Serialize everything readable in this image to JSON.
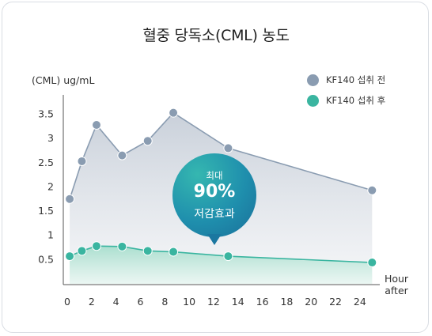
{
  "chart_data": {
    "type": "line",
    "title": "혈중 당독소(CML) 농도",
    "ylabel": "(CML) ug/mL",
    "xlabel": "Hour after",
    "xlabel_lines": [
      "Hour",
      "after"
    ],
    "xlim": [
      0,
      25.5
    ],
    "ylim": [
      0,
      3.9
    ],
    "xticks": [
      0,
      2,
      4,
      6,
      8,
      10,
      12,
      14,
      16,
      18,
      20,
      22,
      24
    ],
    "yticks": [
      0.5,
      1,
      1.5,
      2,
      2.5,
      3,
      3.5
    ],
    "ytick_labels": [
      "0.5",
      "1",
      "1.5",
      "2",
      "2.5",
      "3",
      "3.5"
    ],
    "legend_position": "top-right",
    "series": [
      {
        "name": "KF140 섭취 전",
        "color": "#8a9cb1",
        "x": [
          0.2,
          1.2,
          2.4,
          4.5,
          6.6,
          8.7,
          13.2,
          25
        ],
        "values": [
          1.75,
          2.53,
          3.28,
          2.65,
          2.95,
          3.53,
          2.8,
          1.93
        ]
      },
      {
        "name": "KF140 섭취 후",
        "color": "#3ab5a0",
        "x": [
          0.2,
          1.2,
          2.4,
          4.5,
          6.6,
          8.7,
          13.2,
          25
        ],
        "values": [
          0.57,
          0.68,
          0.78,
          0.77,
          0.68,
          0.66,
          0.57,
          0.44
        ]
      }
    ],
    "annotation": {
      "line1": "최대",
      "line2": "90%",
      "line3": "저감효과"
    }
  }
}
